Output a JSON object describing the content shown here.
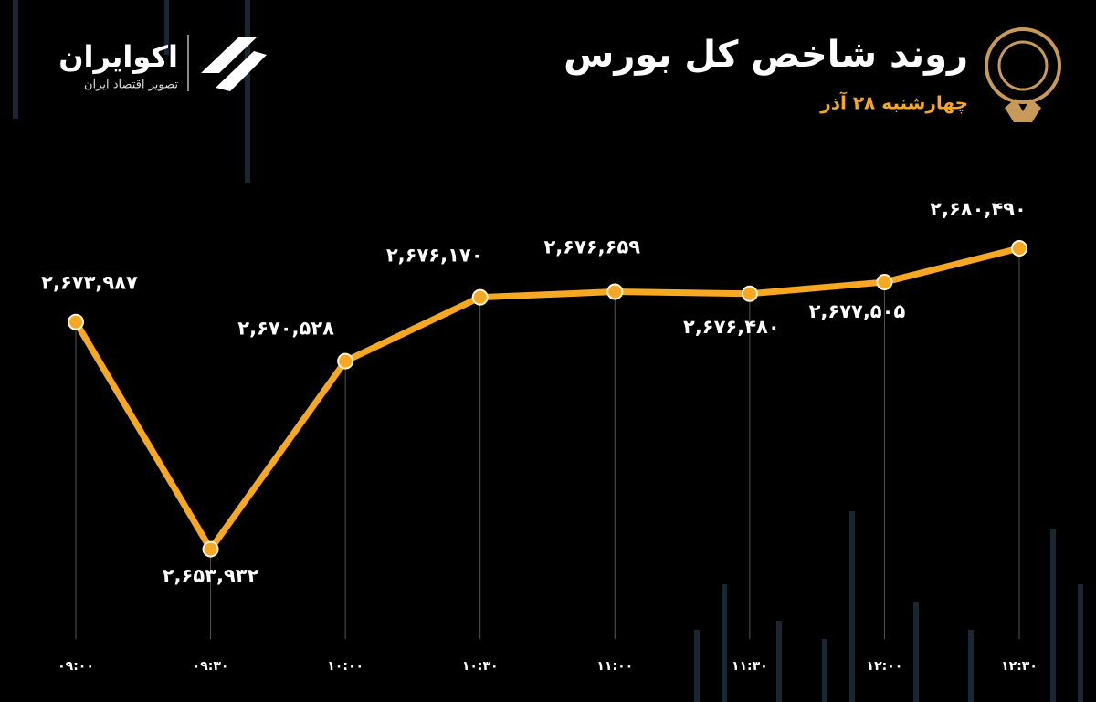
{
  "chart_data": {
    "type": "line",
    "title": "روند شاخص کل بورس",
    "subtitle": "چهارشنبه ۲۸ آذر",
    "brand_name": "اکوایران",
    "brand_tagline": "تصویر اقتصاد ایران",
    "categories": [
      "۰۹:۰۰",
      "۰۹:۳۰",
      "۱۰:۰۰",
      "۱۰:۳۰",
      "۱۱:۰۰",
      "۱۱:۳۰",
      "۱۲:۰۰",
      "۱۲:۳۰"
    ],
    "values": [
      2673987,
      2653932,
      2670528,
      2676170,
      2676659,
      2676480,
      2677505,
      2680490
    ],
    "value_labels": [
      "۲,۶۷۳,۹۸۷",
      "۲,۶۵۳,۹۳۲",
      "۲,۶۷۰,۵۲۸",
      "۲,۶۷۶,۱۷۰",
      "۲,۶۷۶,۶۵۹",
      "۲,۶۷۶,۴۸۰",
      "۲,۶۷۷,۵۰۵",
      "۲,۶۸۰,۴۹۰"
    ],
    "color": "#f7a823",
    "ylim": [
      2646000,
      2690000
    ]
  }
}
